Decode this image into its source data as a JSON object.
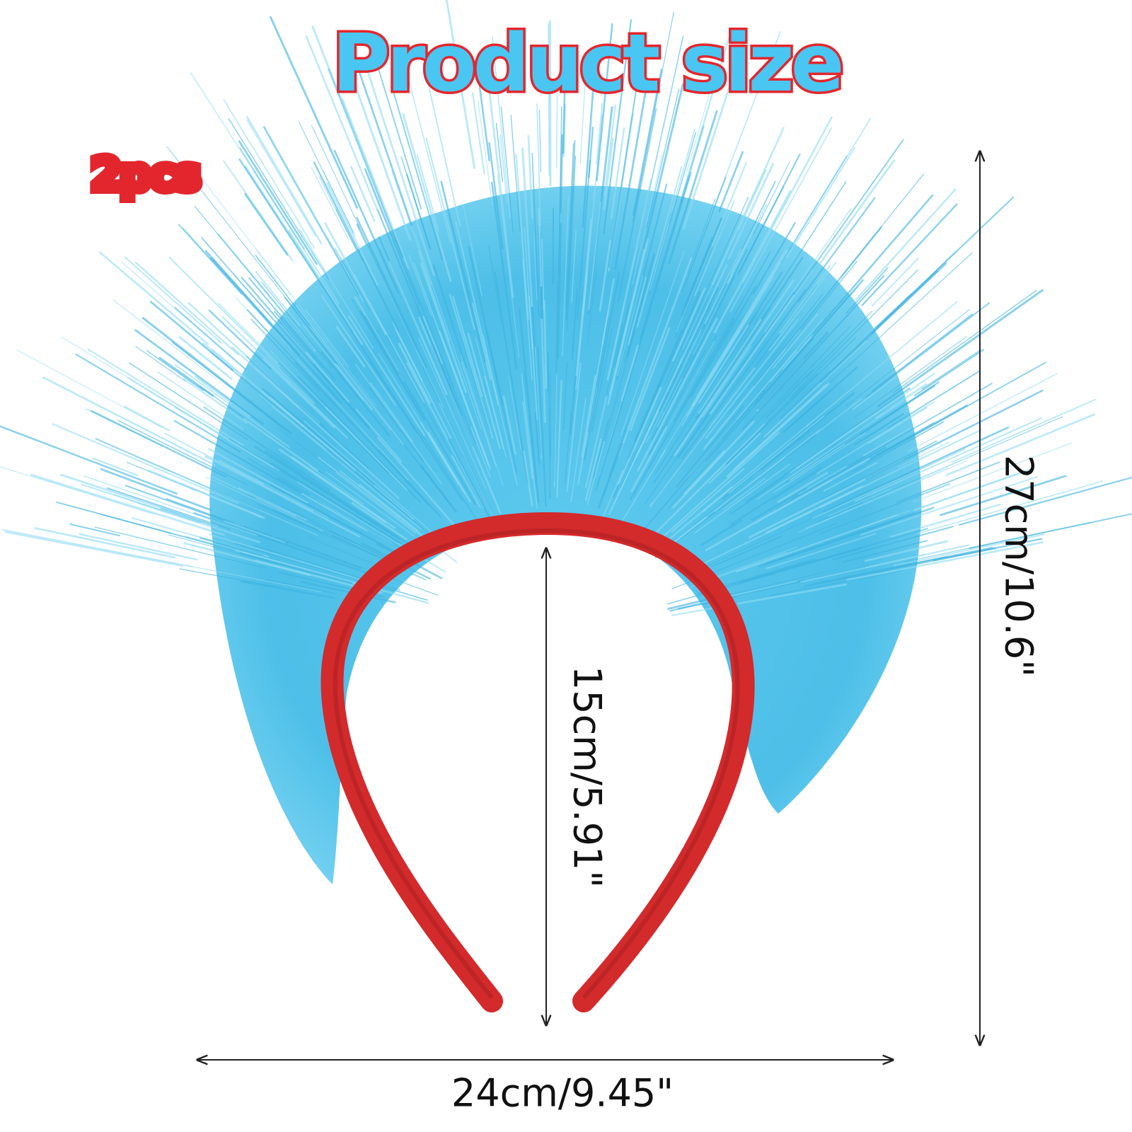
{
  "title": "Product size",
  "quantity": "2pcs",
  "dimensions": {
    "height": "27cm/10.6\"",
    "inner_height": "15cm/5.91\"",
    "width": "24cm/9.45\""
  }
}
